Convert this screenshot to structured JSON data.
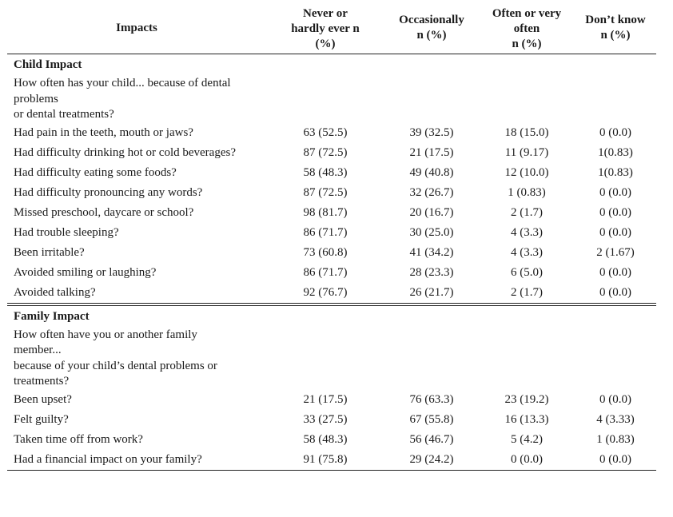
{
  "table": {
    "headers": {
      "impacts": "Impacts",
      "never": [
        "Never or",
        "hardly ever n",
        "(%)"
      ],
      "occasionally": [
        "Occasionally",
        "n (%)"
      ],
      "often": [
        "Often or very",
        "often",
        "n (%)"
      ],
      "dont_know": [
        "Don’t know",
        "n (%)"
      ]
    },
    "child": {
      "title": "Child Impact",
      "question": [
        "How often has your child... because of dental",
        "problems",
        "or dental treatments?"
      ],
      "rows": [
        {
          "item": "Had pain in the teeth, mouth or jaws?",
          "never": "63 (52.5)",
          "occasionally": "39 (32.5)",
          "often": "18 (15.0)",
          "dont_know": "0 (0.0)"
        },
        {
          "item": "Had difficulty drinking hot or cold beverages?",
          "never": "87 (72.5)",
          "occasionally": "21 (17.5)",
          "often": "11 (9.17)",
          "dont_know": "1(0.83)"
        },
        {
          "item": "Had difficulty eating some foods?",
          "never": "58 (48.3)",
          "occasionally": "49 (40.8)",
          "often": "12 (10.0)",
          "dont_know": "1(0.83)"
        },
        {
          "item": "Had difficulty pronouncing any words?",
          "never": "87 (72.5)",
          "occasionally": "32 (26.7)",
          "often": "1 (0.83)",
          "dont_know": "0 (0.0)"
        },
        {
          "item": "Missed preschool, daycare or school?",
          "never": "98 (81.7)",
          "occasionally": "20 (16.7)",
          "often": "2 (1.7)",
          "dont_know": "0 (0.0)"
        },
        {
          "item": "Had trouble sleeping?",
          "never": "86 (71.7)",
          "occasionally": "30 (25.0)",
          "often": "4 (3.3)",
          "dont_know": "0 (0.0)"
        },
        {
          "item": "Been irritable?",
          "never": "73 (60.8)",
          "occasionally": "41 (34.2)",
          "often": "4 (3.3)",
          "dont_know": "2 (1.67)"
        },
        {
          "item": "Avoided smiling or laughing?",
          "never": "86 (71.7)",
          "occasionally": "28 (23.3)",
          "often": "6 (5.0)",
          "dont_know": "0 (0.0)"
        },
        {
          "item": "Avoided talking?",
          "never": "92 (76.7)",
          "occasionally": "26 (21.7)",
          "often": "2 (1.7)",
          "dont_know": "0 (0.0)"
        }
      ]
    },
    "family": {
      "title": "Family Impact",
      "question": [
        "How often have you or another family",
        "member...",
        "because of your child’s dental problems or",
        "treatments?"
      ],
      "rows": [
        {
          "item": "Been upset?",
          "never": "21 (17.5)",
          "occasionally": "76 (63.3)",
          "often": "23 (19.2)",
          "dont_know": "0 (0.0)"
        },
        {
          "item": "Felt guilty?",
          "never": "33 (27.5)",
          "occasionally": "67 (55.8)",
          "often": "16 (13.3)",
          "dont_know": "4 (3.33)"
        },
        {
          "item": "Taken time off from work?",
          "never": "58 (48.3)",
          "occasionally": "56 (46.7)",
          "often": "5 (4.2)",
          "dont_know": "1 (0.83)"
        },
        {
          "item": "Had a financial impact on your family?",
          "never": "91 (75.8)",
          "occasionally": "29 (24.2)",
          "often": "0 (0.0)",
          "dont_know": "0 (0.0)"
        }
      ]
    }
  }
}
